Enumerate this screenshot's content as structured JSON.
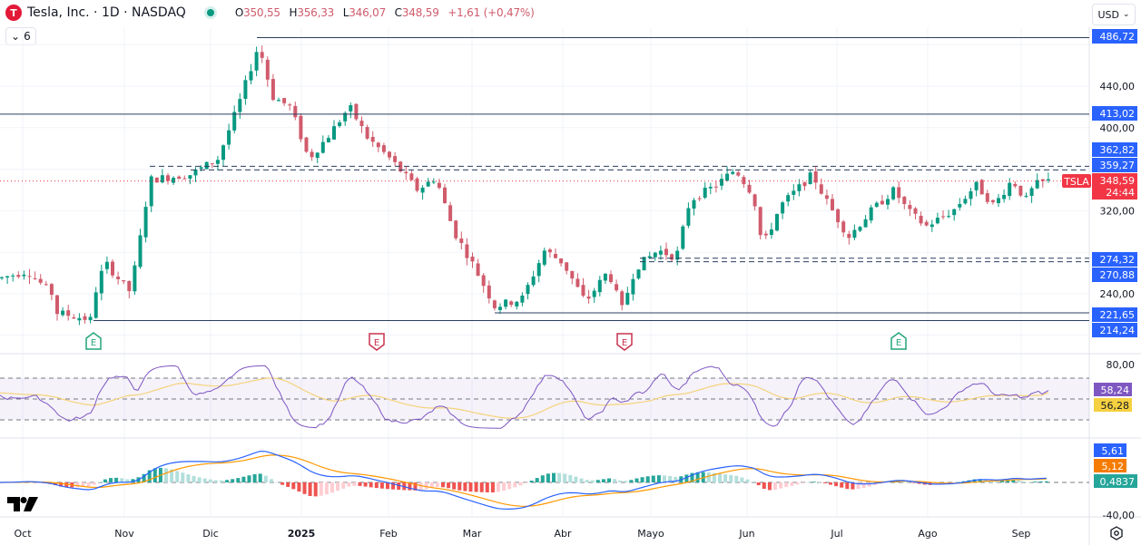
{
  "header": {
    "logo_letter": "T",
    "symbol_title": "Tesla, Inc. · 1D · NASDAQ",
    "ohlc": {
      "o_label": "O",
      "o": "350,55",
      "h_label": "H",
      "h": "356,33",
      "l_label": "L",
      "l": "346,07",
      "c_label": "C",
      "c": "348,59",
      "change": "+1,61 (+0,47%)"
    },
    "collapse_count": "6",
    "currency": "USD"
  },
  "colors": {
    "up": "#089981",
    "down": "#d05b6c",
    "level_line": "#2a3f5f",
    "badge_blue": "#2962ff",
    "badge_red": "#f23645",
    "rsi_line": "#7e57c2",
    "rsi_ma": "#f5d37a",
    "macd_line": "#2962ff",
    "signal_line": "#ff9800",
    "earnings_up": "#22a37a",
    "earnings_down": "#c8324e"
  },
  "price_axis": {
    "ticks": [
      "480,00",
      "440,00",
      "400,00",
      "360,00",
      "320,00",
      "280,00",
      "240,00",
      "200,00"
    ],
    "labels": [
      {
        "value": "486,72",
        "kind": "level"
      },
      {
        "value": "413,02",
        "kind": "level"
      },
      {
        "value": "362,82",
        "kind": "level"
      },
      {
        "value": "359,27",
        "kind": "level"
      },
      {
        "value": "348,59",
        "kind": "last"
      },
      {
        "value": "24:44",
        "kind": "countdown"
      },
      {
        "value": "274,32",
        "kind": "level"
      },
      {
        "value": "270,88",
        "kind": "level"
      },
      {
        "value": "221,65",
        "kind": "level"
      },
      {
        "value": "214,24",
        "kind": "level"
      }
    ],
    "symbol_tag": "TSLA",
    "visible_ticks": [
      "440,00",
      "400,00",
      "320,00",
      "240,00"
    ]
  },
  "rsi_axis": {
    "tick": "80,00",
    "rsi_value": "58,24",
    "rsi_ma_value": "56,28"
  },
  "macd_axis": {
    "macd_value": "5,61",
    "signal_value": "5,12",
    "hist_value": "0,4837",
    "bottom_tick": "-40,00"
  },
  "time_axis": {
    "labels": [
      "Oct",
      "Nov",
      "Dic",
      "2025",
      "Feb",
      "Mar",
      "Abr",
      "Mayo",
      "Jun",
      "Jul",
      "Ago",
      "Sep"
    ]
  },
  "earnings_markers": [
    {
      "label": "E",
      "type": "up"
    },
    {
      "label": "E",
      "type": "down"
    },
    {
      "label": "E",
      "type": "down"
    },
    {
      "label": "E",
      "type": "up"
    }
  ],
  "tv_logo": "17",
  "chart_data": {
    "type": "candlestick",
    "title": "Tesla, Inc. · 1D · NASDAQ",
    "symbol": "TSLA",
    "currency": "USD",
    "last": {
      "open": 350.55,
      "high": 356.33,
      "low": 346.07,
      "close": 348.59,
      "change": 1.61,
      "change_pct": 0.47
    },
    "ylim": [
      200,
      500
    ],
    "x_months": [
      "Oct",
      "Nov",
      "Dic",
      "2025",
      "Feb",
      "Mar",
      "Abr",
      "Mayo",
      "Jun",
      "Jul",
      "Ago",
      "Sep"
    ],
    "horizontal_levels": [
      486.72,
      413.02,
      362.82,
      359.27,
      274.32,
      270.88,
      221.65,
      214.24
    ],
    "approx_monthly_close": {
      "Oct": 250,
      "Nov": 345,
      "Dic": 404,
      "2025": 410,
      "Feb": 290,
      "Mar": 260,
      "Abr": 282,
      "Mayo": 345,
      "Jun": 317,
      "Jul": 308,
      "Ago": 333,
      "Sep": 348.59
    },
    "indicators": {
      "rsi": {
        "value": 58.24,
        "ma": 56.28,
        "bands": [
          70,
          50,
          30
        ]
      },
      "macd": {
        "macd": 5.61,
        "signal": 5.12,
        "histogram": 0.4837,
        "axis_min": -40
      }
    }
  }
}
